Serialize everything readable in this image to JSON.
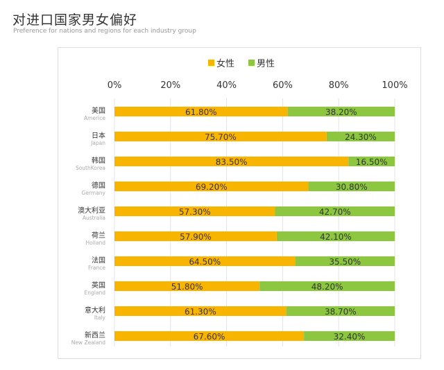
{
  "header": {
    "title": "对进口国家男女偏好",
    "subtitle": "Preference for nations and regions for each industry group"
  },
  "chart_data": {
    "type": "bar",
    "stacked": true,
    "orientation": "horizontal",
    "percent": true,
    "xlim": [
      0,
      100
    ],
    "x_ticks": [
      "0%",
      "20%",
      "40%",
      "60%",
      "80%",
      "100%"
    ],
    "grid": true,
    "legend_position": "top",
    "categories": [
      {
        "cn": "美国",
        "en": "Americe"
      },
      {
        "cn": "日本",
        "en": "Japan"
      },
      {
        "cn": "韩国",
        "en": "SouthKorea"
      },
      {
        "cn": "德国",
        "en": "Germany"
      },
      {
        "cn": "澳大利亚",
        "en": "Australia"
      },
      {
        "cn": "荷兰",
        "en": "Holland"
      },
      {
        "cn": "法国",
        "en": "France"
      },
      {
        "cn": "英国",
        "en": "England"
      },
      {
        "cn": "意大利",
        "en": "Italy"
      },
      {
        "cn": "新西兰",
        "en": "New Zealand"
      }
    ],
    "series": [
      {
        "name": "女性",
        "color": "#F8B500",
        "values": [
          61.8,
          75.7,
          83.5,
          69.2,
          57.3,
          57.9,
          64.5,
          51.8,
          61.3,
          67.6
        ]
      },
      {
        "name": "男性",
        "color": "#8DC63F",
        "values": [
          38.2,
          24.3,
          16.5,
          30.8,
          42.7,
          42.1,
          35.5,
          48.2,
          38.7,
          32.4
        ]
      }
    ],
    "data_labels": [
      [
        "61.80%",
        "75.70%",
        "83.50%",
        "69.20%",
        "57.30%",
        "57.90%",
        "64.50%",
        "51.80%",
        "61.30%",
        "67.60%"
      ],
      [
        "38.20%",
        "24.30%",
        "16.50%",
        "30.80%",
        "42.70%",
        "42.10%",
        "35.50%",
        "48.20%",
        "38.70%",
        "32.40%"
      ]
    ]
  }
}
